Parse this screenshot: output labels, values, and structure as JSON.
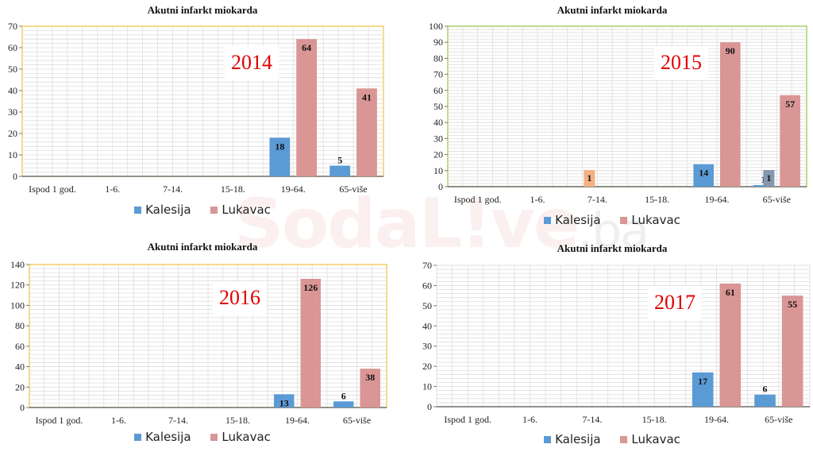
{
  "watermark": {
    "main": "SodaL!ve",
    "suffix": ".ba"
  },
  "colors": {
    "kalesija": "#5b9bd5",
    "lukavac": "#d99694"
  },
  "legend": [
    "Kalesija",
    "Lukavac"
  ],
  "chart_data": [
    {
      "type": "bar",
      "title": "Akutni infarkt miokarda",
      "year_label": "2014",
      "categories": [
        "Ispod 1 god.",
        "1-6.",
        "7-14.",
        "15-18.",
        "19-64.",
        "65-više"
      ],
      "ylim": [
        0,
        70
      ],
      "yticks": [
        0,
        10,
        20,
        30,
        40,
        50,
        60,
        70
      ],
      "grid": true,
      "legend_position": "bottom",
      "series": [
        {
          "name": "Kalesija",
          "values": [
            0,
            0,
            0,
            0,
            18,
            5
          ]
        },
        {
          "name": "Lukavac",
          "values": [
            0,
            0,
            0,
            0,
            64,
            41
          ]
        }
      ]
    },
    {
      "type": "bar",
      "title": "Akutni infarkt miokarda",
      "year_label": "2015",
      "categories": [
        "Ispod 1 god.",
        "1-6.",
        "7-14.",
        "15-18.",
        "19-64.",
        "65-više"
      ],
      "ylim": [
        0,
        100
      ],
      "yticks": [
        0,
        10,
        20,
        30,
        40,
        50,
        60,
        70,
        80,
        90,
        100
      ],
      "grid": true,
      "legend_position": "bottom",
      "series": [
        {
          "name": "Kalesija",
          "values": [
            0,
            0,
            0,
            0,
            14,
            1
          ]
        },
        {
          "name": "Lukavac",
          "values": [
            0,
            0,
            0,
            0,
            90,
            57
          ]
        }
      ],
      "annotations": [
        {
          "category": "7-14.",
          "value": 1,
          "color": "#f4b183"
        },
        {
          "category": "65-više",
          "value": 1,
          "color": "#8497b0"
        }
      ]
    },
    {
      "type": "bar",
      "title": "Akutni infarkt miokarda",
      "year_label": "2016",
      "categories": [
        "Ispod 1 god.",
        "1-6.",
        "7-14.",
        "15-18.",
        "19-64.",
        "65-više"
      ],
      "ylim": [
        0,
        140
      ],
      "yticks": [
        0,
        20,
        40,
        60,
        80,
        100,
        120,
        140
      ],
      "grid": true,
      "legend_position": "bottom",
      "series": [
        {
          "name": "Kalesija",
          "values": [
            0,
            0,
            0,
            0,
            13,
            6
          ]
        },
        {
          "name": "Lukavac",
          "values": [
            0,
            0,
            0,
            0,
            126,
            38
          ]
        }
      ]
    },
    {
      "type": "bar",
      "title": "Akutni infarkt miokarda",
      "year_label": "2017",
      "categories": [
        "Ispod 1 god.",
        "1-6.",
        "7-14.",
        "15-18.",
        "19-64.",
        "65-više"
      ],
      "ylim": [
        0,
        70
      ],
      "yticks": [
        0,
        10,
        20,
        30,
        40,
        50,
        60,
        70
      ],
      "grid": true,
      "legend_position": "bottom",
      "series": [
        {
          "name": "Kalesija",
          "values": [
            0,
            0,
            0,
            0,
            17,
            6
          ]
        },
        {
          "name": "Lukavac",
          "values": [
            0,
            0,
            0,
            0,
            61,
            55
          ]
        }
      ]
    }
  ]
}
